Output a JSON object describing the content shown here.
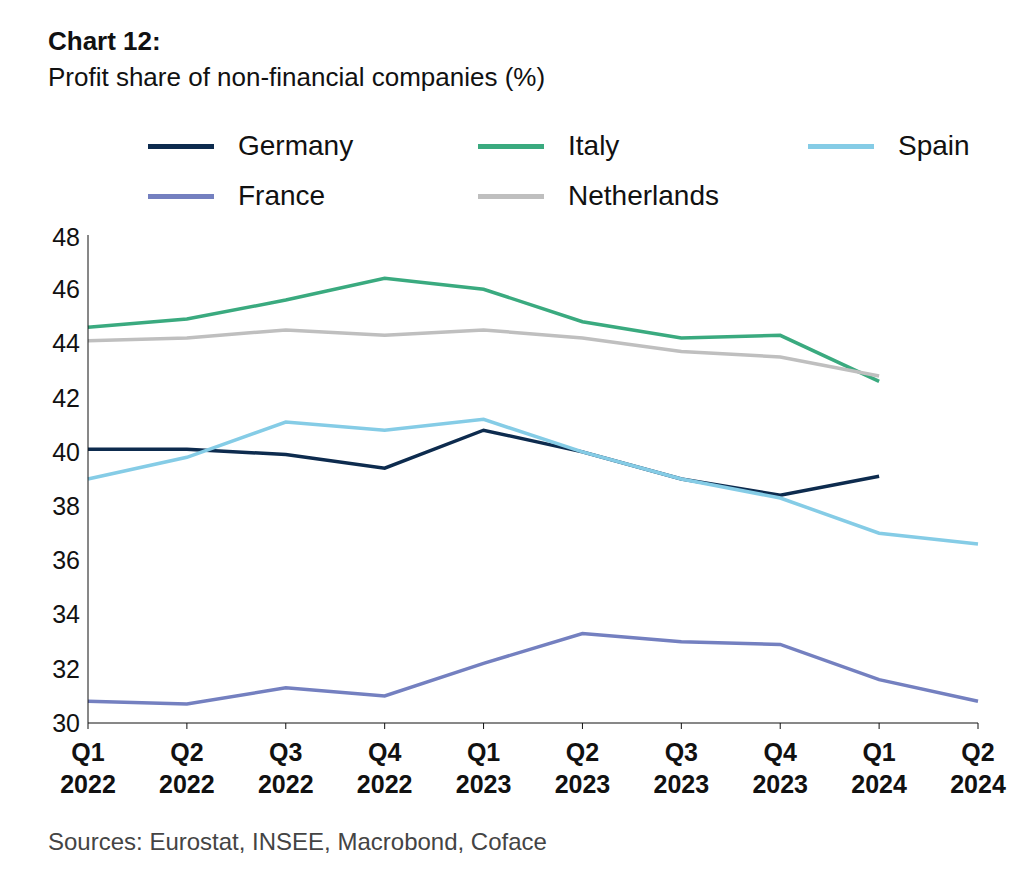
{
  "chart_data": {
    "type": "line",
    "title": "Chart 12:",
    "subtitle": "Profit share of non-financial companies (%)",
    "source": "Sources: Eurostat, INSEE, Macrobond, Coface",
    "categories": [
      "Q1 2022",
      "Q2 2022",
      "Q3 2022",
      "Q4 2022",
      "Q1 2023",
      "Q2 2023",
      "Q3 2023",
      "Q4 2023",
      "Q1 2024",
      "Q2 2024"
    ],
    "series": [
      {
        "name": "Germany",
        "color": "#0d2b4e",
        "values": [
          40.1,
          40.1,
          39.9,
          39.4,
          40.8,
          40.0,
          39.0,
          38.4,
          39.1,
          null
        ]
      },
      {
        "name": "Italy",
        "color": "#3aaa7f",
        "values": [
          44.6,
          44.9,
          45.6,
          46.4,
          46.0,
          44.8,
          44.2,
          44.3,
          42.6,
          null
        ]
      },
      {
        "name": "Spain",
        "color": "#85cce6",
        "values": [
          39.0,
          39.8,
          41.1,
          40.8,
          41.2,
          40.0,
          39.0,
          38.3,
          37.0,
          36.6
        ]
      },
      {
        "name": "France",
        "color": "#7480c0",
        "values": [
          30.8,
          30.7,
          31.3,
          31.0,
          32.2,
          33.3,
          33.0,
          32.9,
          31.6,
          30.8
        ]
      },
      {
        "name": "Netherlands",
        "color": "#bfbfbf",
        "values": [
          44.1,
          44.2,
          44.5,
          44.3,
          44.5,
          44.2,
          43.7,
          43.5,
          42.8,
          null
        ]
      }
    ],
    "ylim": [
      30,
      48
    ],
    "yticks": [
      30,
      32,
      34,
      36,
      38,
      40,
      42,
      44,
      46,
      48
    ],
    "grid": false,
    "legend": "top"
  }
}
